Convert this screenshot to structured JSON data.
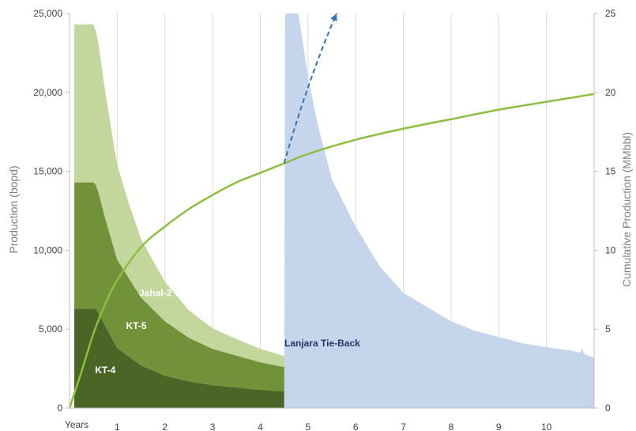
{
  "chart_data": {
    "type": "area",
    "title": "",
    "xlabel": "",
    "x_origin_label": "Years",
    "x_ticks": [
      1,
      2,
      3,
      4,
      5,
      6,
      7,
      8,
      9,
      10
    ],
    "xlim": [
      0,
      11
    ],
    "ylabel_left": "Production (bopd)",
    "ylabel_right": "Cumulative Production (MMbbl)",
    "ylim_left": [
      0,
      25000
    ],
    "ylim_right": [
      0,
      25
    ],
    "y_ticks_left": [
      "0",
      "5,000",
      "10,000",
      "15,000",
      "20,000",
      "25,000"
    ],
    "y_ticks_right": [
      "0",
      "5",
      "10",
      "15",
      "20",
      "25"
    ],
    "grid": true,
    "stacked_series": [
      {
        "name": "KT-4",
        "color": "#4a6525",
        "label_color": "#ffffff",
        "label_at": [
          0.75,
          2200
        ],
        "x": [
          0.1,
          0.55,
          0.75,
          1.0,
          1.5,
          2.0,
          2.5,
          3.0,
          4.0,
          5.0,
          6.0,
          7.0,
          8.0,
          9.0,
          10.0,
          11.0
        ],
        "values": [
          6300,
          6300,
          5200,
          3800,
          2700,
          2050,
          1700,
          1450,
          1150,
          950,
          830,
          740,
          670,
          620,
          580,
          550
        ]
      },
      {
        "name": "KT-5",
        "color": "#719239",
        "label_color": "#ffffff",
        "label_at": [
          1.4,
          5000
        ],
        "x": [
          0.1,
          0.5,
          0.6,
          0.75,
          1.0,
          1.5,
          2.0,
          2.5,
          3.0,
          4.0,
          5.0,
          6.0,
          6.4,
          6.45,
          7.0,
          8.0,
          9.0,
          10.0,
          11.0
        ],
        "values": [
          8000,
          8000,
          7700,
          6800,
          5600,
          4300,
          3450,
          2750,
          2300,
          1750,
          1350,
          1050,
          1000,
          1450,
          1200,
          1050,
          930,
          830,
          750
        ]
      },
      {
        "name": "Jahal-2",
        "color": "#c3d69b",
        "label_color": "#ffffff",
        "label_at": [
          1.8,
          7100
        ],
        "x": [
          0.1,
          0.5,
          0.6,
          0.75,
          1.0,
          1.25,
          1.5,
          2.0,
          2.5,
          3.0,
          3.5,
          4.0,
          4.5,
          5.0,
          5.5,
          6.0,
          6.4,
          6.45
        ],
        "values": [
          10000,
          10000,
          9500,
          8000,
          6000,
          4700,
          3700,
          2500,
          1750,
          1300,
          1050,
          850,
          700,
          550,
          450,
          350,
          300,
          0
        ]
      }
    ],
    "overlay_series": [
      {
        "name": "Lanjara Tie-Back",
        "color": "#c5d5ec",
        "label_color": "#1f3864",
        "label_at": [
          5.3,
          3900
        ],
        "x": [
          4.5,
          4.52,
          4.6,
          4.8,
          5.0,
          5.2,
          5.5,
          6.0,
          6.5,
          7.0,
          7.5,
          8.0,
          8.5,
          9.0,
          9.5,
          10.0,
          10.5,
          10.7,
          10.75,
          10.8,
          11.0
        ],
        "values": [
          0,
          25000,
          25000,
          25000,
          21000,
          18000,
          14500,
          11500,
          9000,
          7300,
          6400,
          5500,
          4900,
          4500,
          4100,
          3850,
          3650,
          3500,
          3750,
          3400,
          3200
        ]
      }
    ],
    "line_series": [
      {
        "name": "Cumulative Production",
        "axis": "right",
        "color": "#8cbf3f",
        "x": [
          0.0,
          0.25,
          0.5,
          0.75,
          1.0,
          1.5,
          2.0,
          2.5,
          3.0,
          3.5,
          4.0,
          4.5,
          5.0,
          6.0,
          7.0,
          8.0,
          9.0,
          10.0,
          11.0
        ],
        "values": [
          0,
          2.3,
          4.7,
          6.6,
          8.1,
          10.2,
          11.5,
          12.6,
          13.5,
          14.3,
          14.9,
          15.5,
          16.1,
          17.0,
          17.7,
          18.3,
          18.9,
          19.4,
          19.9
        ]
      }
    ],
    "dashed_arrow": {
      "color": "#2e75b6",
      "x": [
        4.5,
        5.0,
        5.6
      ],
      "values": [
        15.5,
        20.8,
        25
      ]
    }
  }
}
